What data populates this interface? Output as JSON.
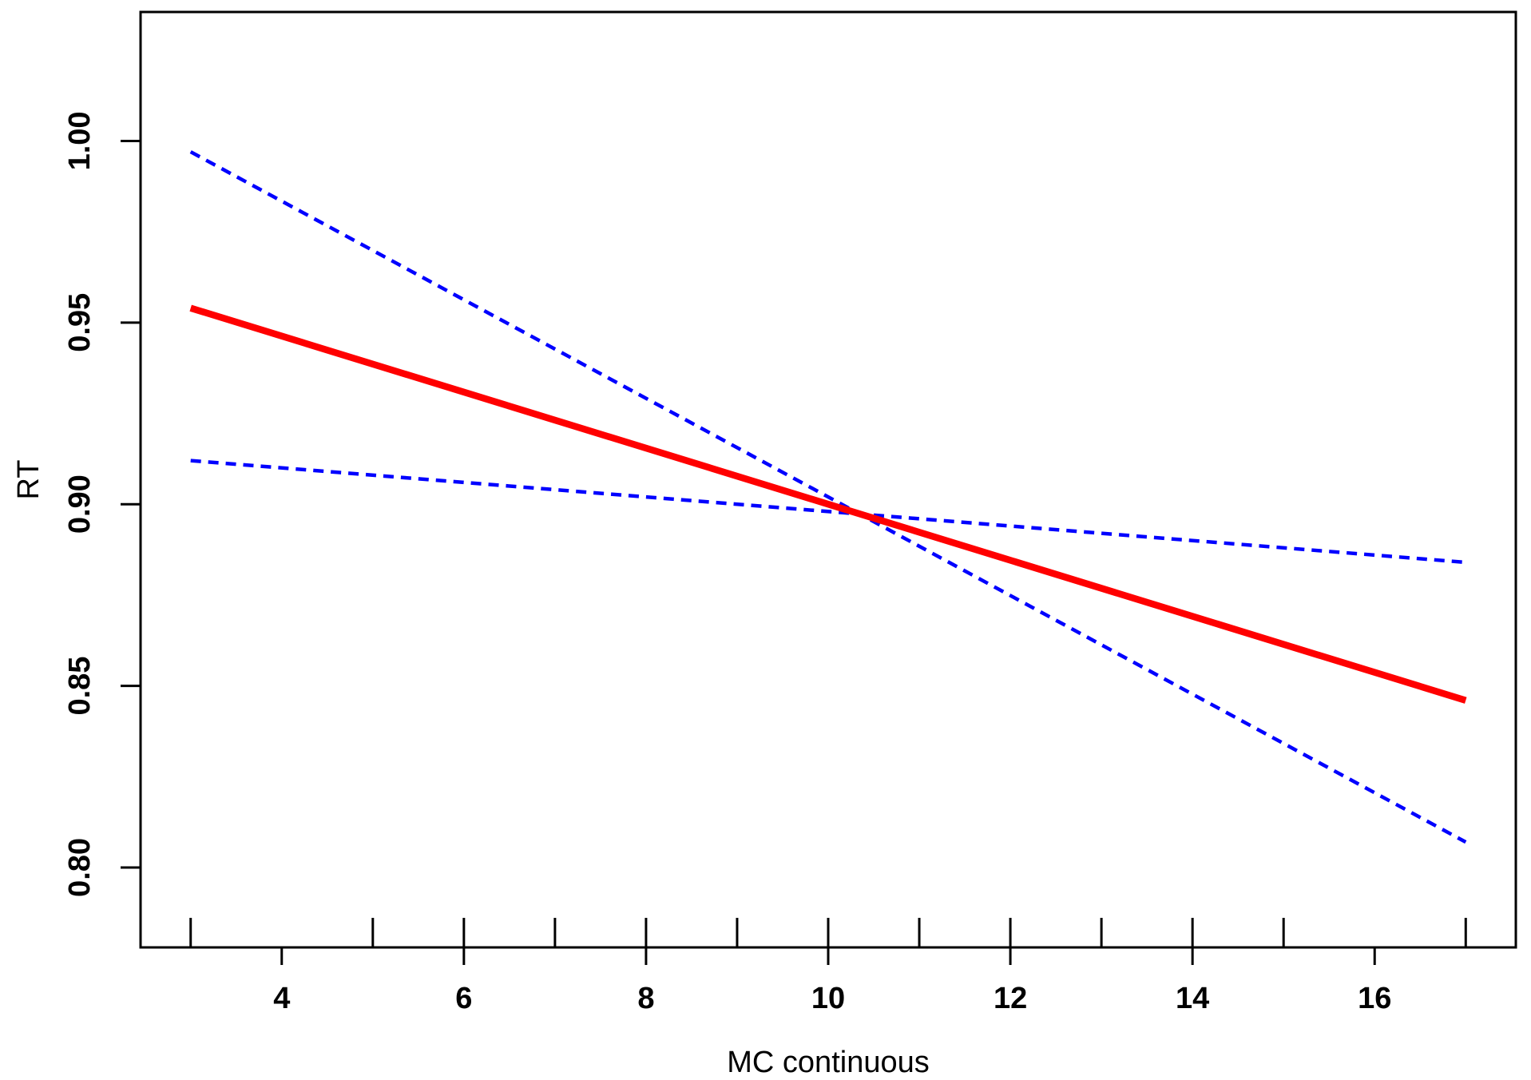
{
  "figure": {
    "background": "#ffffff",
    "border_color": "#000000",
    "text_color": "#000000"
  },
  "chart_data": {
    "type": "line",
    "title": "",
    "xlabel": "MC continuous",
    "ylabel": "RT",
    "x_tick_labels": [
      4,
      6,
      8,
      10,
      12,
      14,
      16
    ],
    "x_inner_ticks": [
      3,
      5,
      6,
      7,
      8,
      9,
      10,
      11,
      12,
      13,
      14,
      15,
      17
    ],
    "y_tick_labels": [
      "1.00",
      "0.95",
      "0.90",
      "0.85",
      "0.80"
    ],
    "y_tick_values": [
      1.0,
      0.95,
      0.9,
      0.85,
      0.8
    ],
    "xlim": [
      2.45,
      17.55
    ],
    "ylim": [
      0.778,
      1.0355
    ],
    "grid": false,
    "legend": "none",
    "series": [
      {
        "name": "lower-confidence-line",
        "color": "#0000ff",
        "style": "dashed",
        "width": 4.5,
        "x": [
          3,
          17
        ],
        "y": [
          0.912,
          0.884
        ]
      },
      {
        "name": "upper-confidence-line",
        "color": "#0000ff",
        "style": "dashed",
        "width": 4.5,
        "x": [
          3,
          17
        ],
        "y": [
          0.997,
          0.807
        ]
      },
      {
        "name": "fitted-regression-line",
        "color": "#ff0000",
        "style": "solid",
        "width": 8.5,
        "x": [
          3,
          17
        ],
        "y": [
          0.954,
          0.846
        ]
      }
    ]
  }
}
